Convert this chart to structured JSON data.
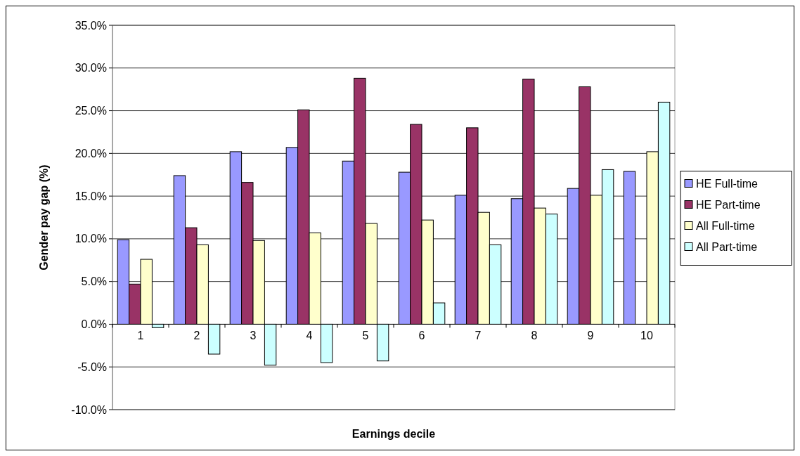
{
  "chart_data": {
    "type": "bar",
    "xlabel": "Earnings decile",
    "ylabel": "Gender pay gap (%)",
    "categories": [
      "1",
      "2",
      "3",
      "4",
      "5",
      "6",
      "7",
      "8",
      "9",
      "10"
    ],
    "series": [
      {
        "name": "HE Full-time",
        "color": "#9999ff",
        "values": [
          9.9,
          17.4,
          20.2,
          20.7,
          19.1,
          17.8,
          15.1,
          14.7,
          15.9,
          17.9
        ]
      },
      {
        "name": "HE Part-time",
        "color": "#993366",
        "values": [
          4.7,
          11.3,
          16.6,
          25.1,
          28.8,
          23.4,
          23.0,
          28.7,
          27.8,
          null
        ]
      },
      {
        "name": "All Full-time",
        "color": "#ffffcc",
        "values": [
          7.6,
          9.3,
          9.8,
          10.7,
          11.8,
          12.2,
          13.1,
          13.6,
          15.1,
          20.2
        ]
      },
      {
        "name": "All Part-time",
        "color": "#ccffff",
        "values": [
          -0.4,
          -3.5,
          -4.8,
          -4.5,
          -4.3,
          2.5,
          9.3,
          12.9,
          18.1,
          26.0
        ]
      }
    ],
    "ylim": [
      -10,
      35
    ],
    "yticks": [
      {
        "value": -10,
        "label": "-10.0%"
      },
      {
        "value": -5,
        "label": "-5.0%"
      },
      {
        "value": 0,
        "label": "0.0%"
      },
      {
        "value": 5,
        "label": "5.0%"
      },
      {
        "value": 10,
        "label": "10.0%"
      },
      {
        "value": 15,
        "label": "15.0%"
      },
      {
        "value": 20,
        "label": "20.0%"
      },
      {
        "value": 25,
        "label": "25.0%"
      },
      {
        "value": 30,
        "label": "30.0%"
      },
      {
        "value": 35,
        "label": "35.0%"
      }
    ],
    "grid": "y",
    "legend": "right"
  }
}
